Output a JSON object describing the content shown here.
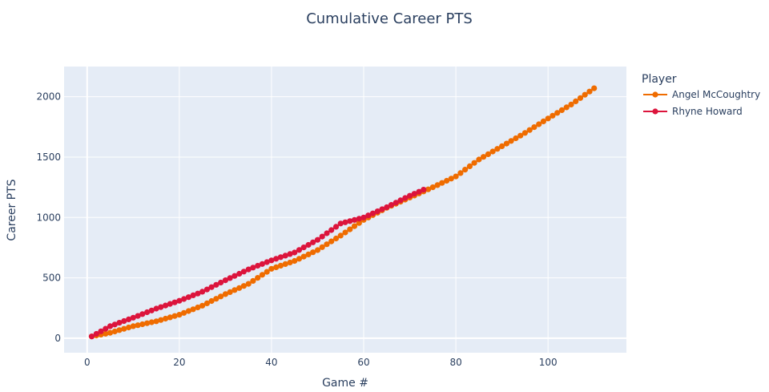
{
  "chart_data": {
    "type": "line",
    "title": "Cumulative Career PTS",
    "xlabel": "Game #",
    "ylabel": "Career PTS",
    "xlim": [
      -5,
      117
    ],
    "ylim": [
      -120,
      2250
    ],
    "xticks": [
      0,
      20,
      40,
      60,
      80,
      100
    ],
    "yticks": [
      0,
      500,
      1000,
      1500,
      2000
    ],
    "grid": true,
    "legend": {
      "title": "Player",
      "placement": "right"
    },
    "series": [
      {
        "name": "Angel McCoughtry",
        "color": "#ef6c00",
        "marker": "circle",
        "anchors": [
          [
            1,
            15
          ],
          [
            5,
            45
          ],
          [
            10,
            100
          ],
          [
            15,
            140
          ],
          [
            20,
            195
          ],
          [
            25,
            270
          ],
          [
            30,
            365
          ],
          [
            35,
            450
          ],
          [
            40,
            575
          ],
          [
            45,
            640
          ],
          [
            50,
            730
          ],
          [
            55,
            850
          ],
          [
            60,
            980
          ],
          [
            65,
            1080
          ],
          [
            70,
            1165
          ],
          [
            75,
            1250
          ],
          [
            80,
            1340
          ],
          [
            85,
            1480
          ],
          [
            90,
            1590
          ],
          [
            95,
            1700
          ],
          [
            100,
            1820
          ],
          [
            105,
            1935
          ],
          [
            110,
            2070
          ]
        ]
      },
      {
        "name": "Rhyne Howard",
        "color": "#dc143c",
        "marker": "circle",
        "anchors": [
          [
            1,
            15
          ],
          [
            5,
            100
          ],
          [
            10,
            170
          ],
          [
            15,
            245
          ],
          [
            20,
            310
          ],
          [
            25,
            385
          ],
          [
            30,
            480
          ],
          [
            35,
            570
          ],
          [
            40,
            645
          ],
          [
            45,
            710
          ],
          [
            50,
            815
          ],
          [
            55,
            950
          ],
          [
            60,
            1000
          ],
          [
            65,
            1085
          ],
          [
            70,
            1180
          ],
          [
            73,
            1230
          ]
        ]
      }
    ]
  }
}
